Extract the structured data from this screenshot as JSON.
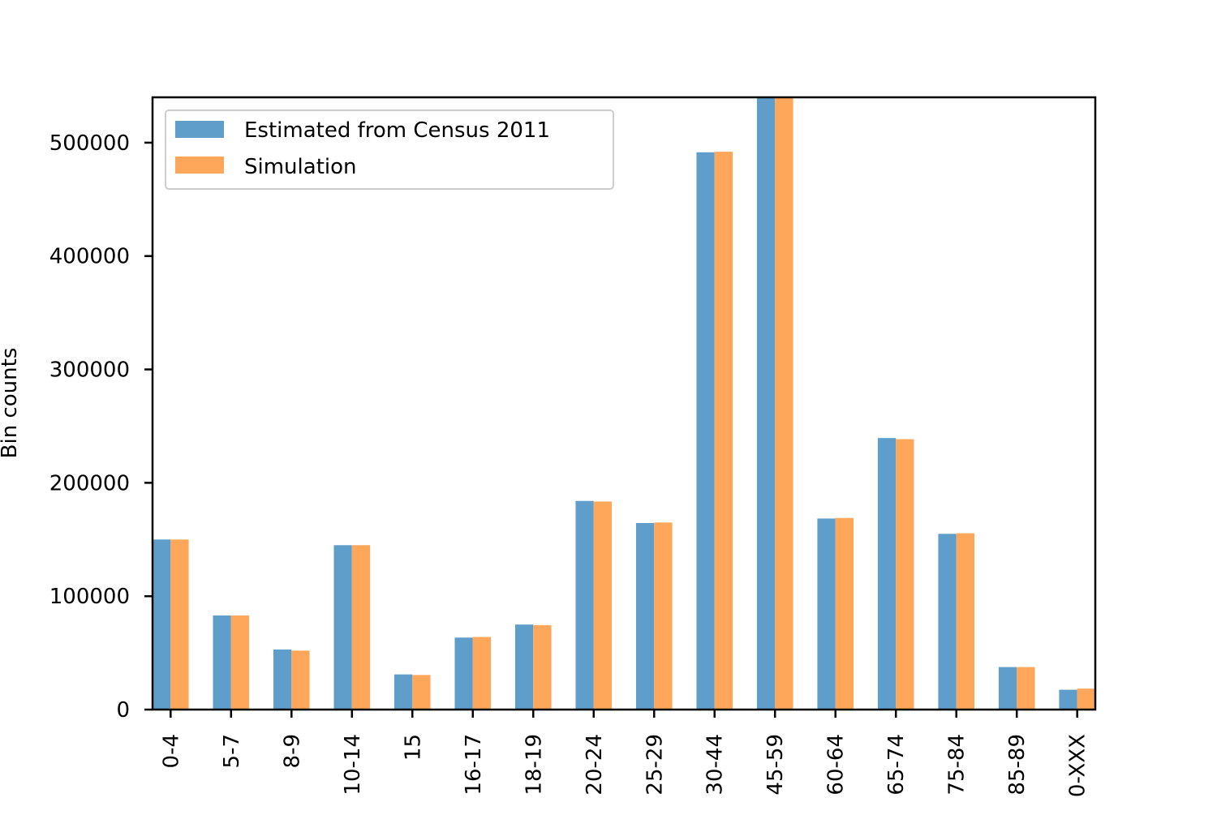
{
  "chart_data": {
    "type": "bar",
    "ylabel": "Bin counts",
    "ylim": [
      0,
      540000
    ],
    "yticks": [
      0,
      100000,
      200000,
      300000,
      400000,
      500000
    ],
    "ytick_labels": [
      "0",
      "100000",
      "200000",
      "300000",
      "400000",
      "500000"
    ],
    "categories": [
      "0-4",
      "5-7",
      "8-9",
      "10-14",
      "15",
      "16-17",
      "18-19",
      "20-24",
      "25-29",
      "30-44",
      "45-59",
      "60-64",
      "65-74",
      "75-84",
      "85-89",
      "0-XXX"
    ],
    "series": [
      {
        "name": "Estimated from Census 2011",
        "color": "#5f9ecb",
        "values": [
          150000,
          83000,
          53000,
          145000,
          31000,
          63500,
          75000,
          184000,
          164500,
          491500,
          540000,
          168500,
          239500,
          155000,
          37500,
          17500
        ]
      },
      {
        "name": "Simulation",
        "color": "#fea75a",
        "values": [
          150000,
          83000,
          52000,
          145000,
          30500,
          64000,
          74500,
          183500,
          165000,
          492000,
          540000,
          169000,
          238500,
          155500,
          37500,
          18500
        ]
      }
    ],
    "legend_position": "upper-left",
    "grid": false
  }
}
